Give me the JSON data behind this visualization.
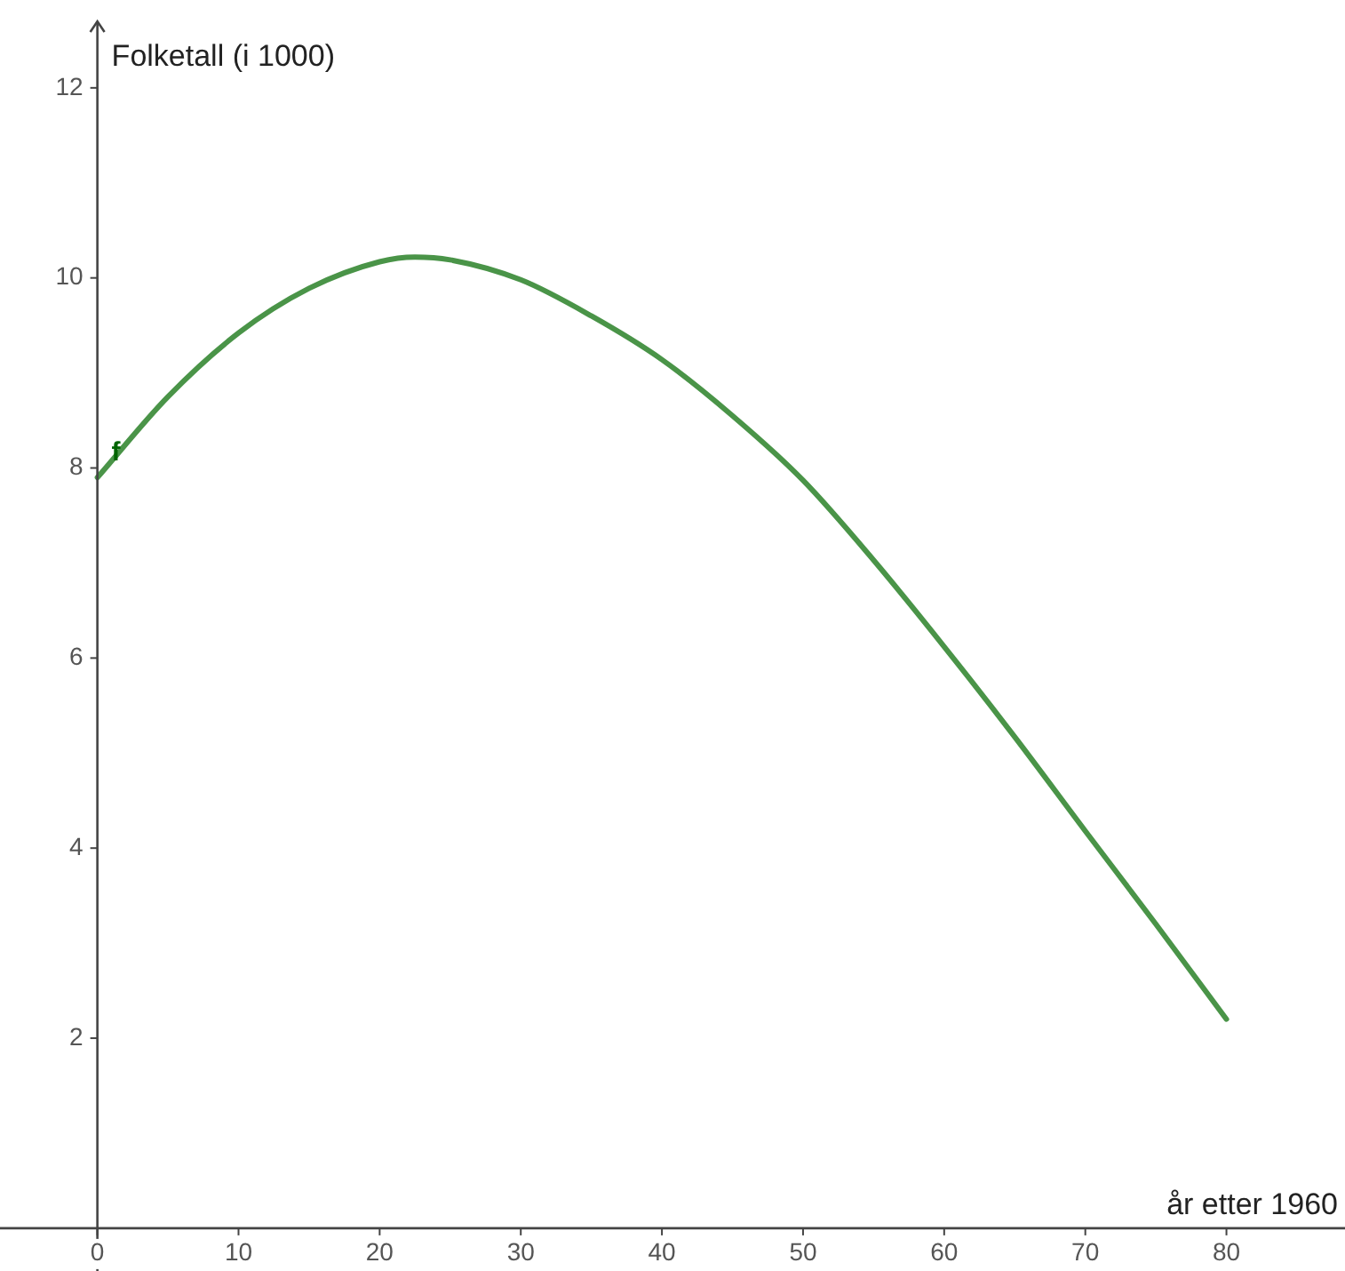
{
  "chart_data": {
    "type": "line",
    "xlabel": "år etter 1960",
    "ylabel": "Folketall (i 1000)",
    "x": [
      0,
      5,
      10,
      15,
      20,
      22.5,
      25,
      30,
      35,
      40,
      45,
      50,
      55,
      60,
      65,
      70,
      75,
      80
    ],
    "series": [
      {
        "name": "f",
        "color": "#4a9448",
        "values": [
          7.9,
          8.75,
          9.42,
          9.89,
          10.17,
          10.22,
          10.19,
          9.98,
          9.6,
          9.14,
          8.55,
          7.87,
          7.03,
          6.12,
          5.17,
          4.18,
          3.2,
          2.2
        ]
      }
    ],
    "xlim": [
      -6.9,
      88.4
    ],
    "ylim": [
      -0.45,
      12.7
    ],
    "xticks": [
      0,
      10,
      20,
      30,
      40,
      50,
      60,
      70,
      80
    ],
    "yticks": [
      2,
      4,
      6,
      8,
      10,
      12
    ],
    "legend": false,
    "marker": "none",
    "line_style": "solid"
  }
}
